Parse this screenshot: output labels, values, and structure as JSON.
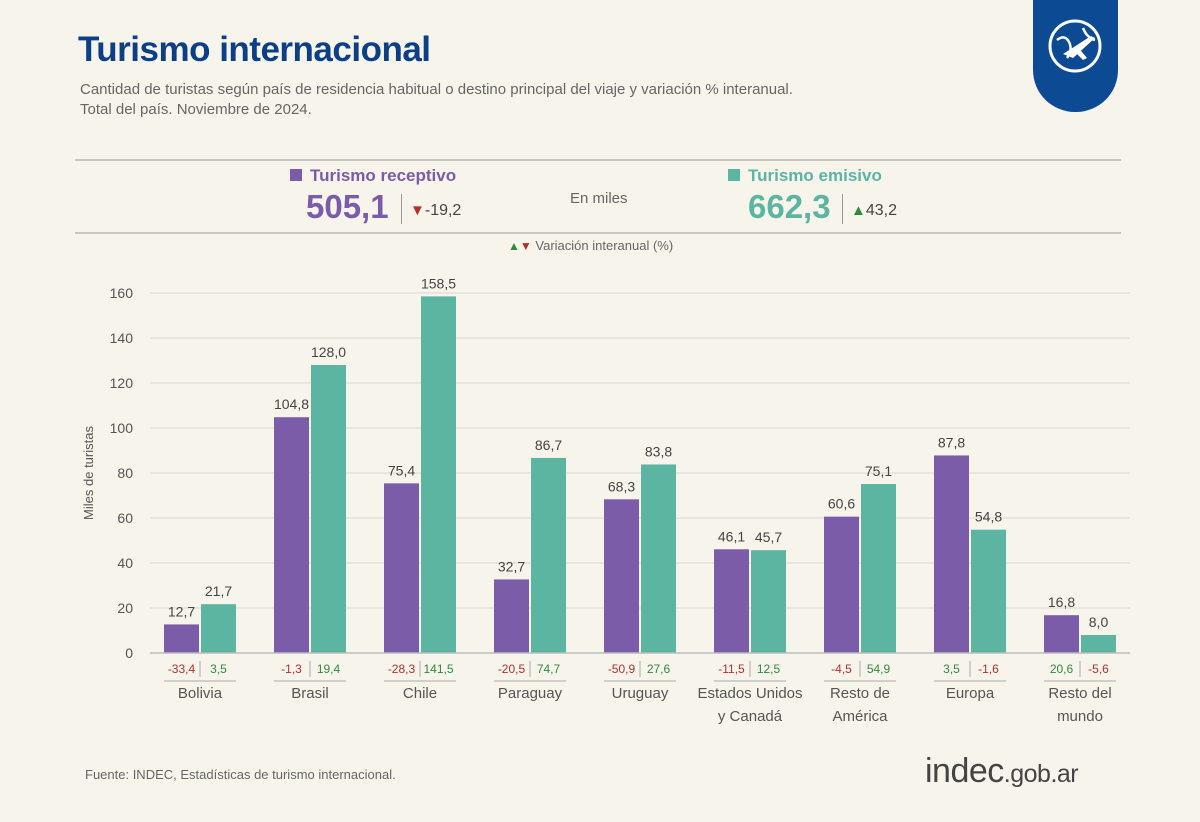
{
  "header": {
    "title": "Turismo internacional",
    "subtitle_line1": "Cantidad de turistas según país de residencia habitual o destino principal del viaje y variación % interanual.",
    "subtitle_line2": "Total del país. Noviembre de 2024.",
    "badge_icon": "globe-airplane-icon"
  },
  "summary": {
    "receptivo": {
      "label": "Turismo receptivo",
      "total": "505,1",
      "variation": "-19,2",
      "direction": "down"
    },
    "emisivo": {
      "label": "Turismo emisivo",
      "total": "662,3",
      "variation": "43,2",
      "direction": "up"
    },
    "unit": "En miles",
    "variation_legend": "Variación interanual (%)"
  },
  "colors": {
    "receptivo": "#7b5ca8",
    "emisivo": "#5cb5a1",
    "title": "#0d3f86",
    "negative": "#b3302c",
    "positive": "#2e8b3e"
  },
  "chart_data": {
    "type": "bar",
    "ylabel": "Miles de turistas",
    "ylim": [
      0,
      160
    ],
    "yticks": [
      0,
      20,
      40,
      60,
      80,
      100,
      120,
      140,
      160
    ],
    "grid": true,
    "categories": [
      [
        "Bolivia"
      ],
      [
        "Brasil"
      ],
      [
        "Chile"
      ],
      [
        "Paraguay"
      ],
      [
        "Uruguay"
      ],
      [
        "Estados Unidos",
        "y Canadá"
      ],
      [
        "Resto de",
        "América"
      ],
      [
        "Europa"
      ],
      [
        "Resto del",
        "mundo"
      ]
    ],
    "series": [
      {
        "name": "Turismo receptivo",
        "values": [
          12.7,
          104.8,
          75.4,
          32.7,
          68.3,
          46.1,
          60.6,
          87.8,
          16.8
        ],
        "labels": [
          "12,7",
          "104,8",
          "75,4",
          "32,7",
          "68,3",
          "46,1",
          "60,6",
          "87,8",
          "16,8"
        ],
        "variation": [
          "-33,4",
          "-1,3",
          "-28,3",
          "-20,5",
          "-50,9",
          "-11,5",
          "-4,5",
          "3,5",
          "20,6"
        ]
      },
      {
        "name": "Turismo emisivo",
        "values": [
          21.7,
          128.0,
          158.5,
          86.7,
          83.8,
          45.7,
          75.1,
          54.8,
          8.0
        ],
        "labels": [
          "21,7",
          "128,0",
          "158,5",
          "86,7",
          "83,8",
          "45,7",
          "75,1",
          "54,8",
          "8,0"
        ],
        "variation": [
          "3,5",
          "19,4",
          "141,5",
          "74,7",
          "27,6",
          "12,5",
          "54,9",
          "-1,6",
          "-5,6"
        ]
      }
    ]
  },
  "footer": {
    "source": "Fuente: INDEC, Estadísticas de turismo internacional.",
    "brand": "indec",
    "brand_suffix": ".gob.ar"
  }
}
